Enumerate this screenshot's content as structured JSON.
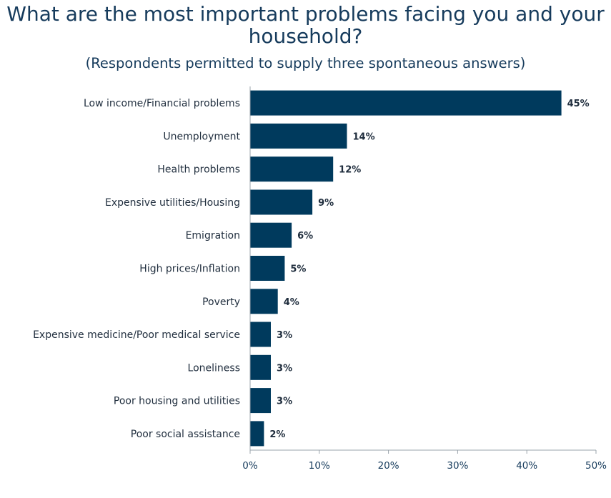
{
  "chart_data": {
    "type": "bar",
    "orientation": "horizontal",
    "title": "What are the most important problems facing you and your household?",
    "subtitle": "(Respondents permitted to supply three spontaneous answers)",
    "categories": [
      "Low income/Financial problems",
      "Unemployment",
      "Health problems",
      "Expensive utilities/Housing",
      "Emigration",
      "High prices/Inflation",
      "Poverty",
      "Expensive medicine/Poor medical service",
      "Loneliness",
      "Poor housing and utilities",
      "Poor social assistance"
    ],
    "values": [
      45,
      14,
      12,
      9,
      6,
      5,
      4,
      3,
      3,
      3,
      2
    ],
    "value_labels": [
      "45%",
      "14%",
      "12%",
      "9%",
      "6%",
      "5%",
      "4%",
      "3%",
      "3%",
      "3%",
      "2%"
    ],
    "xlim": [
      0,
      50
    ],
    "x_ticks": [
      0,
      10,
      20,
      30,
      40,
      50
    ],
    "x_tick_labels": [
      "0%",
      "10%",
      "20%",
      "30%",
      "40%",
      "50%"
    ],
    "grid": false,
    "legend": "none",
    "colors": {
      "bar": "#003a5d",
      "axis": "#9aa3ab",
      "title": "#163b5c",
      "text": "#1f2d3d"
    }
  }
}
